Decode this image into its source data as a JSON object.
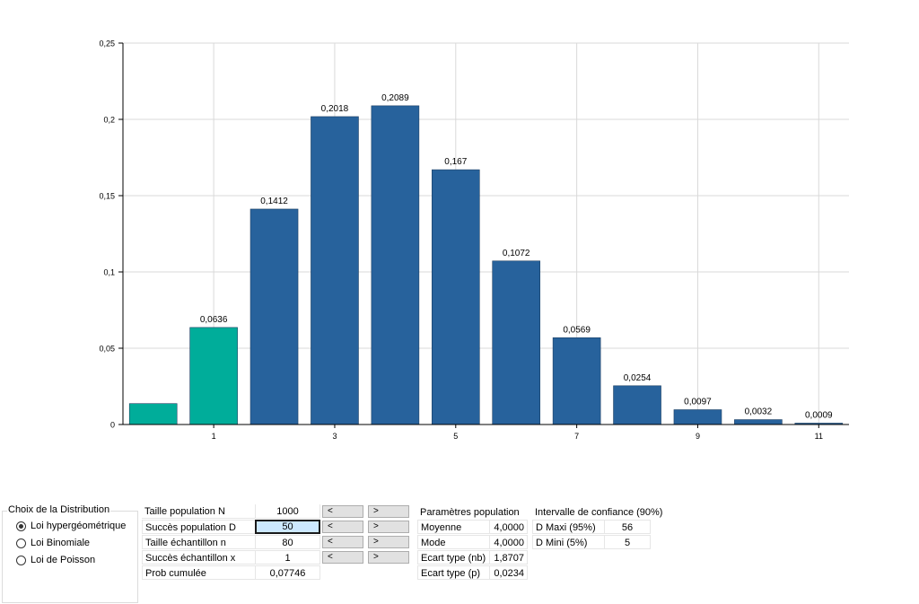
{
  "chart_data": {
    "type": "bar",
    "categories": [
      "0",
      "1",
      "2",
      "3",
      "4",
      "5",
      "6",
      "7",
      "8",
      "9",
      "10",
      "11"
    ],
    "values": [
      0.0137,
      0.0636,
      0.1412,
      0.2018,
      0.2089,
      0.167,
      0.1072,
      0.0569,
      0.0254,
      0.0097,
      0.0032,
      0.0009
    ],
    "data_labels": [
      "",
      "0,0636",
      "0,1412",
      "0,2018",
      "0,2089",
      "0,167",
      "0,1072",
      "0,0569",
      "0,0254",
      "0,0097",
      "0,0032",
      "0,0009"
    ],
    "y_ticks": [
      "0",
      "0,05",
      "0,1",
      "0,15",
      "0,2",
      "0,25"
    ],
    "x_ticks": [
      "1",
      "3",
      "5",
      "7",
      "9",
      "11"
    ],
    "ylim": [
      0,
      0.25
    ],
    "highlight_up_to": 1,
    "colors": {
      "bar": "#27629c",
      "highlight": "#00ad9a",
      "grid": "#d9d9d9"
    },
    "grid": true
  },
  "distribution": {
    "title": "Choix de la Distribution",
    "options": [
      "Loi hypergéométrique",
      "Loi Binomiale",
      "Loi de Poisson"
    ],
    "selected": "Loi hypergéométrique"
  },
  "parameters": [
    {
      "label": "Taille population N",
      "value": "1000"
    },
    {
      "label": "Succès population D",
      "value": "50"
    },
    {
      "label": "Taille échantillon n",
      "value": "80"
    },
    {
      "label": "Succès échantillon x",
      "value": "1"
    },
    {
      "label": "Prob cumulée",
      "value": "0,07746"
    }
  ],
  "buttons": {
    "prev": "<",
    "next": ">"
  },
  "population": {
    "title": "Paramètres population",
    "rows": [
      {
        "label": "Moyenne",
        "value": "4,0000"
      },
      {
        "label": "Mode",
        "value": "4,0000"
      },
      {
        "label": "Ecart type (nb)",
        "value": "1,8707"
      },
      {
        "label": "Ecart type (p)",
        "value": "0,0234"
      }
    ]
  },
  "confidence": {
    "title": "Intervalle de confiance (90%)",
    "rows": [
      {
        "label": "D Maxi (95%)",
        "value": "56"
      },
      {
        "label": "D Mini (5%)",
        "value": "5"
      }
    ]
  }
}
